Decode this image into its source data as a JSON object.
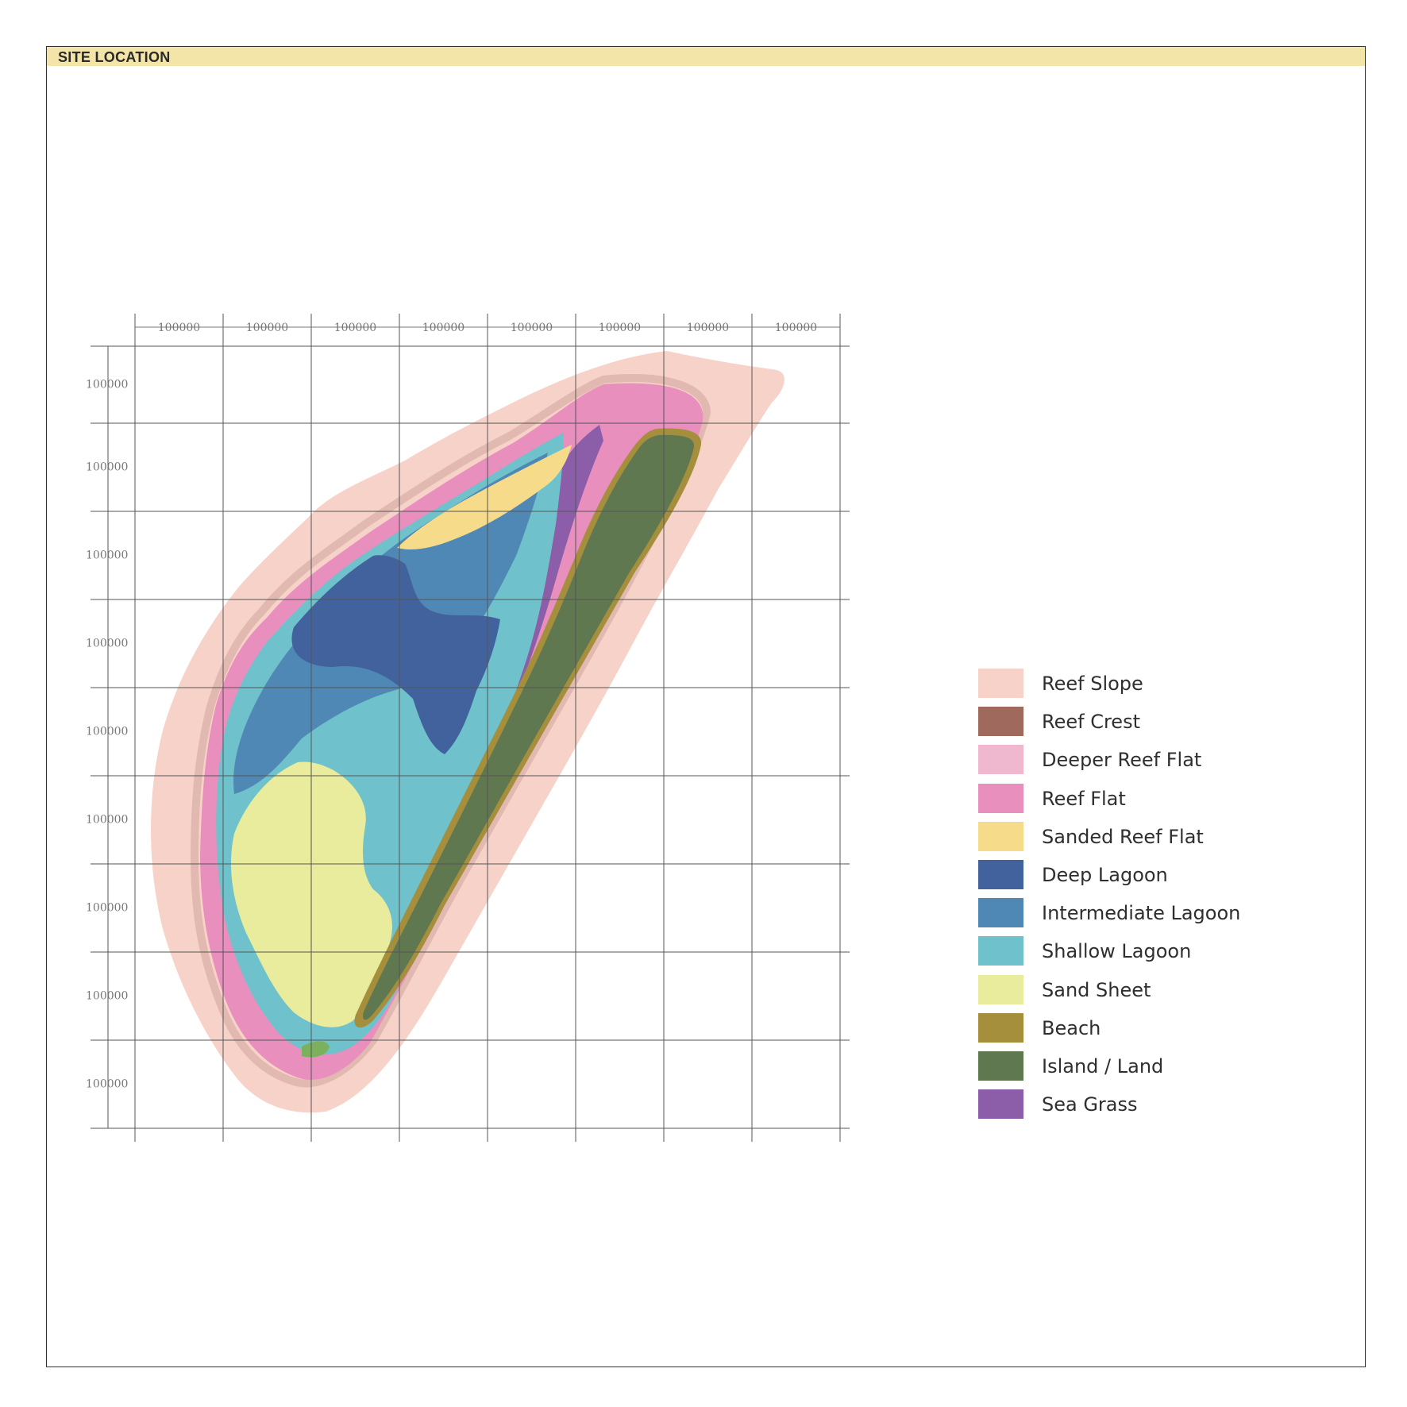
{
  "header": {
    "title": "SITE LOCATION"
  },
  "grid": {
    "top_labels": [
      "100000",
      "100000",
      "100000",
      "100000",
      "100000",
      "100000",
      "100000",
      "100000"
    ],
    "left_labels": [
      "100000",
      "100000",
      "100000",
      "100000",
      "100000",
      "100000",
      "100000",
      "100000",
      "100000"
    ]
  },
  "legend": {
    "items": [
      {
        "label": "Reef Slope",
        "color": "#f7d2c8"
      },
      {
        "label": "Reef Crest",
        "color": "#a0695e"
      },
      {
        "label": "Deeper Reef Flat",
        "color": "#efb8cf"
      },
      {
        "label": "Reef Flat",
        "color": "#e88fbe"
      },
      {
        "label": "Sanded Reef Flat",
        "color": "#f6dc8a"
      },
      {
        "label": "Deep Lagoon",
        "color": "#41629c"
      },
      {
        "label": "Intermediate Lagoon",
        "color": "#4f87b5"
      },
      {
        "label": "Shallow Lagoon",
        "color": "#6fc2cc"
      },
      {
        "label": "Sand Sheet",
        "color": "#e9ec9c"
      },
      {
        "label": "Beach",
        "color": "#a58e3c"
      },
      {
        "label": "Island / Land",
        "color": "#60784f"
      },
      {
        "label": "Sea Grass",
        "color": "#8c5ea9"
      }
    ]
  }
}
